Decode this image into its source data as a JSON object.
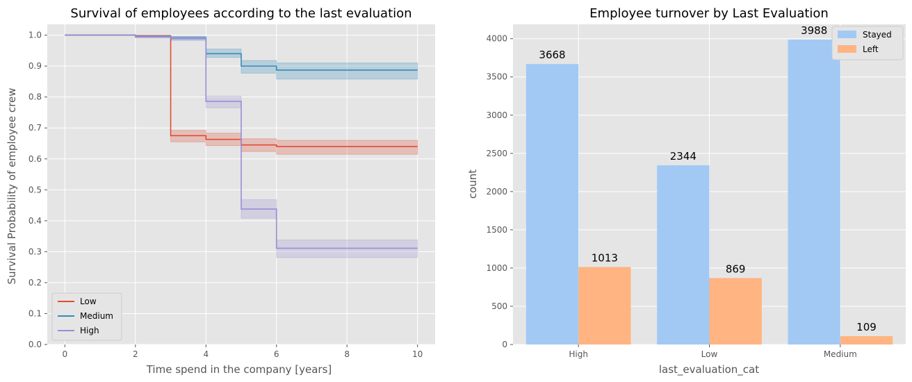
{
  "chart_data": [
    {
      "type": "line",
      "title": "Survival of employees according to the last evaluation",
      "xlabel": "Time spend in the company [years]",
      "ylabel": "Survival Probability of employee crew",
      "xlim": [
        -0.5,
        10.5
      ],
      "ylim": [
        0,
        1.035
      ],
      "xticks": [
        0,
        2,
        4,
        6,
        8,
        10
      ],
      "xtick_labels": [
        "0",
        "2",
        "4",
        "6",
        "8",
        "10"
      ],
      "yticks": [
        0.0,
        0.1,
        0.2,
        0.3,
        0.4,
        0.5,
        0.6,
        0.7,
        0.8,
        0.9,
        1.0
      ],
      "ytick_labels": [
        "0.0",
        "0.1",
        "0.2",
        "0.3",
        "0.4",
        "0.5",
        "0.6",
        "0.7",
        "0.8",
        "0.9",
        "1.0"
      ],
      "grid": true,
      "step": true,
      "legend_position": "lower-left",
      "series": [
        {
          "name": "Low",
          "color": "#e24a33",
          "x": [
            0,
            2,
            3,
            4,
            5,
            6,
            10
          ],
          "y": [
            1.0,
            0.997,
            0.675,
            0.663,
            0.645,
            0.64,
            0.64
          ],
          "ci_lower": [
            1.0,
            0.994,
            0.655,
            0.643,
            0.624,
            0.615,
            0.615
          ],
          "ci_upper": [
            1.0,
            1.0,
            0.692,
            0.683,
            0.665,
            0.66,
            0.66
          ]
        },
        {
          "name": "Medium",
          "color": "#348abd",
          "x": [
            0,
            2,
            3,
            4,
            5,
            6,
            10
          ],
          "y": [
            1.0,
            0.996,
            0.991,
            0.94,
            0.9,
            0.887,
            0.887
          ],
          "ci_lower": [
            1.0,
            0.993,
            0.985,
            0.928,
            0.877,
            0.858,
            0.858
          ],
          "ci_upper": [
            1.0,
            0.999,
            0.996,
            0.955,
            0.918,
            0.91,
            0.91
          ]
        },
        {
          "name": "High",
          "color": "#988ed5",
          "x": [
            0,
            2,
            3,
            4,
            5,
            6,
            10
          ],
          "y": [
            1.0,
            0.995,
            0.99,
            0.786,
            0.438,
            0.311,
            0.311
          ],
          "ci_lower": [
            1.0,
            0.991,
            0.983,
            0.765,
            0.408,
            0.281,
            0.281
          ],
          "ci_upper": [
            1.0,
            0.998,
            0.995,
            0.803,
            0.468,
            0.338,
            0.338
          ]
        }
      ]
    },
    {
      "type": "bar",
      "title": "Employee turnover by Last Evaluation",
      "xlabel": "last_evaluation_cat",
      "ylabel": "count",
      "categories": [
        "High",
        "Low",
        "Medium"
      ],
      "ylim": [
        0,
        4188
      ],
      "yticks": [
        0,
        500,
        1000,
        1500,
        2000,
        2500,
        3000,
        3500,
        4000
      ],
      "ytick_labels": [
        "0",
        "500",
        "1000",
        "1500",
        "2000",
        "2500",
        "3000",
        "3500",
        "4000"
      ],
      "grid": true,
      "legend_position": "top-right",
      "series": [
        {
          "name": "Stayed",
          "color": "#a1c9f4",
          "values": [
            3668,
            2344,
            3988
          ],
          "labels": [
            "3668",
            "2344",
            "3988"
          ]
        },
        {
          "name": "Left",
          "color": "#ffb482",
          "values": [
            1013,
            869,
            109
          ],
          "labels": [
            "1013",
            "869",
            "109"
          ]
        }
      ]
    }
  ]
}
